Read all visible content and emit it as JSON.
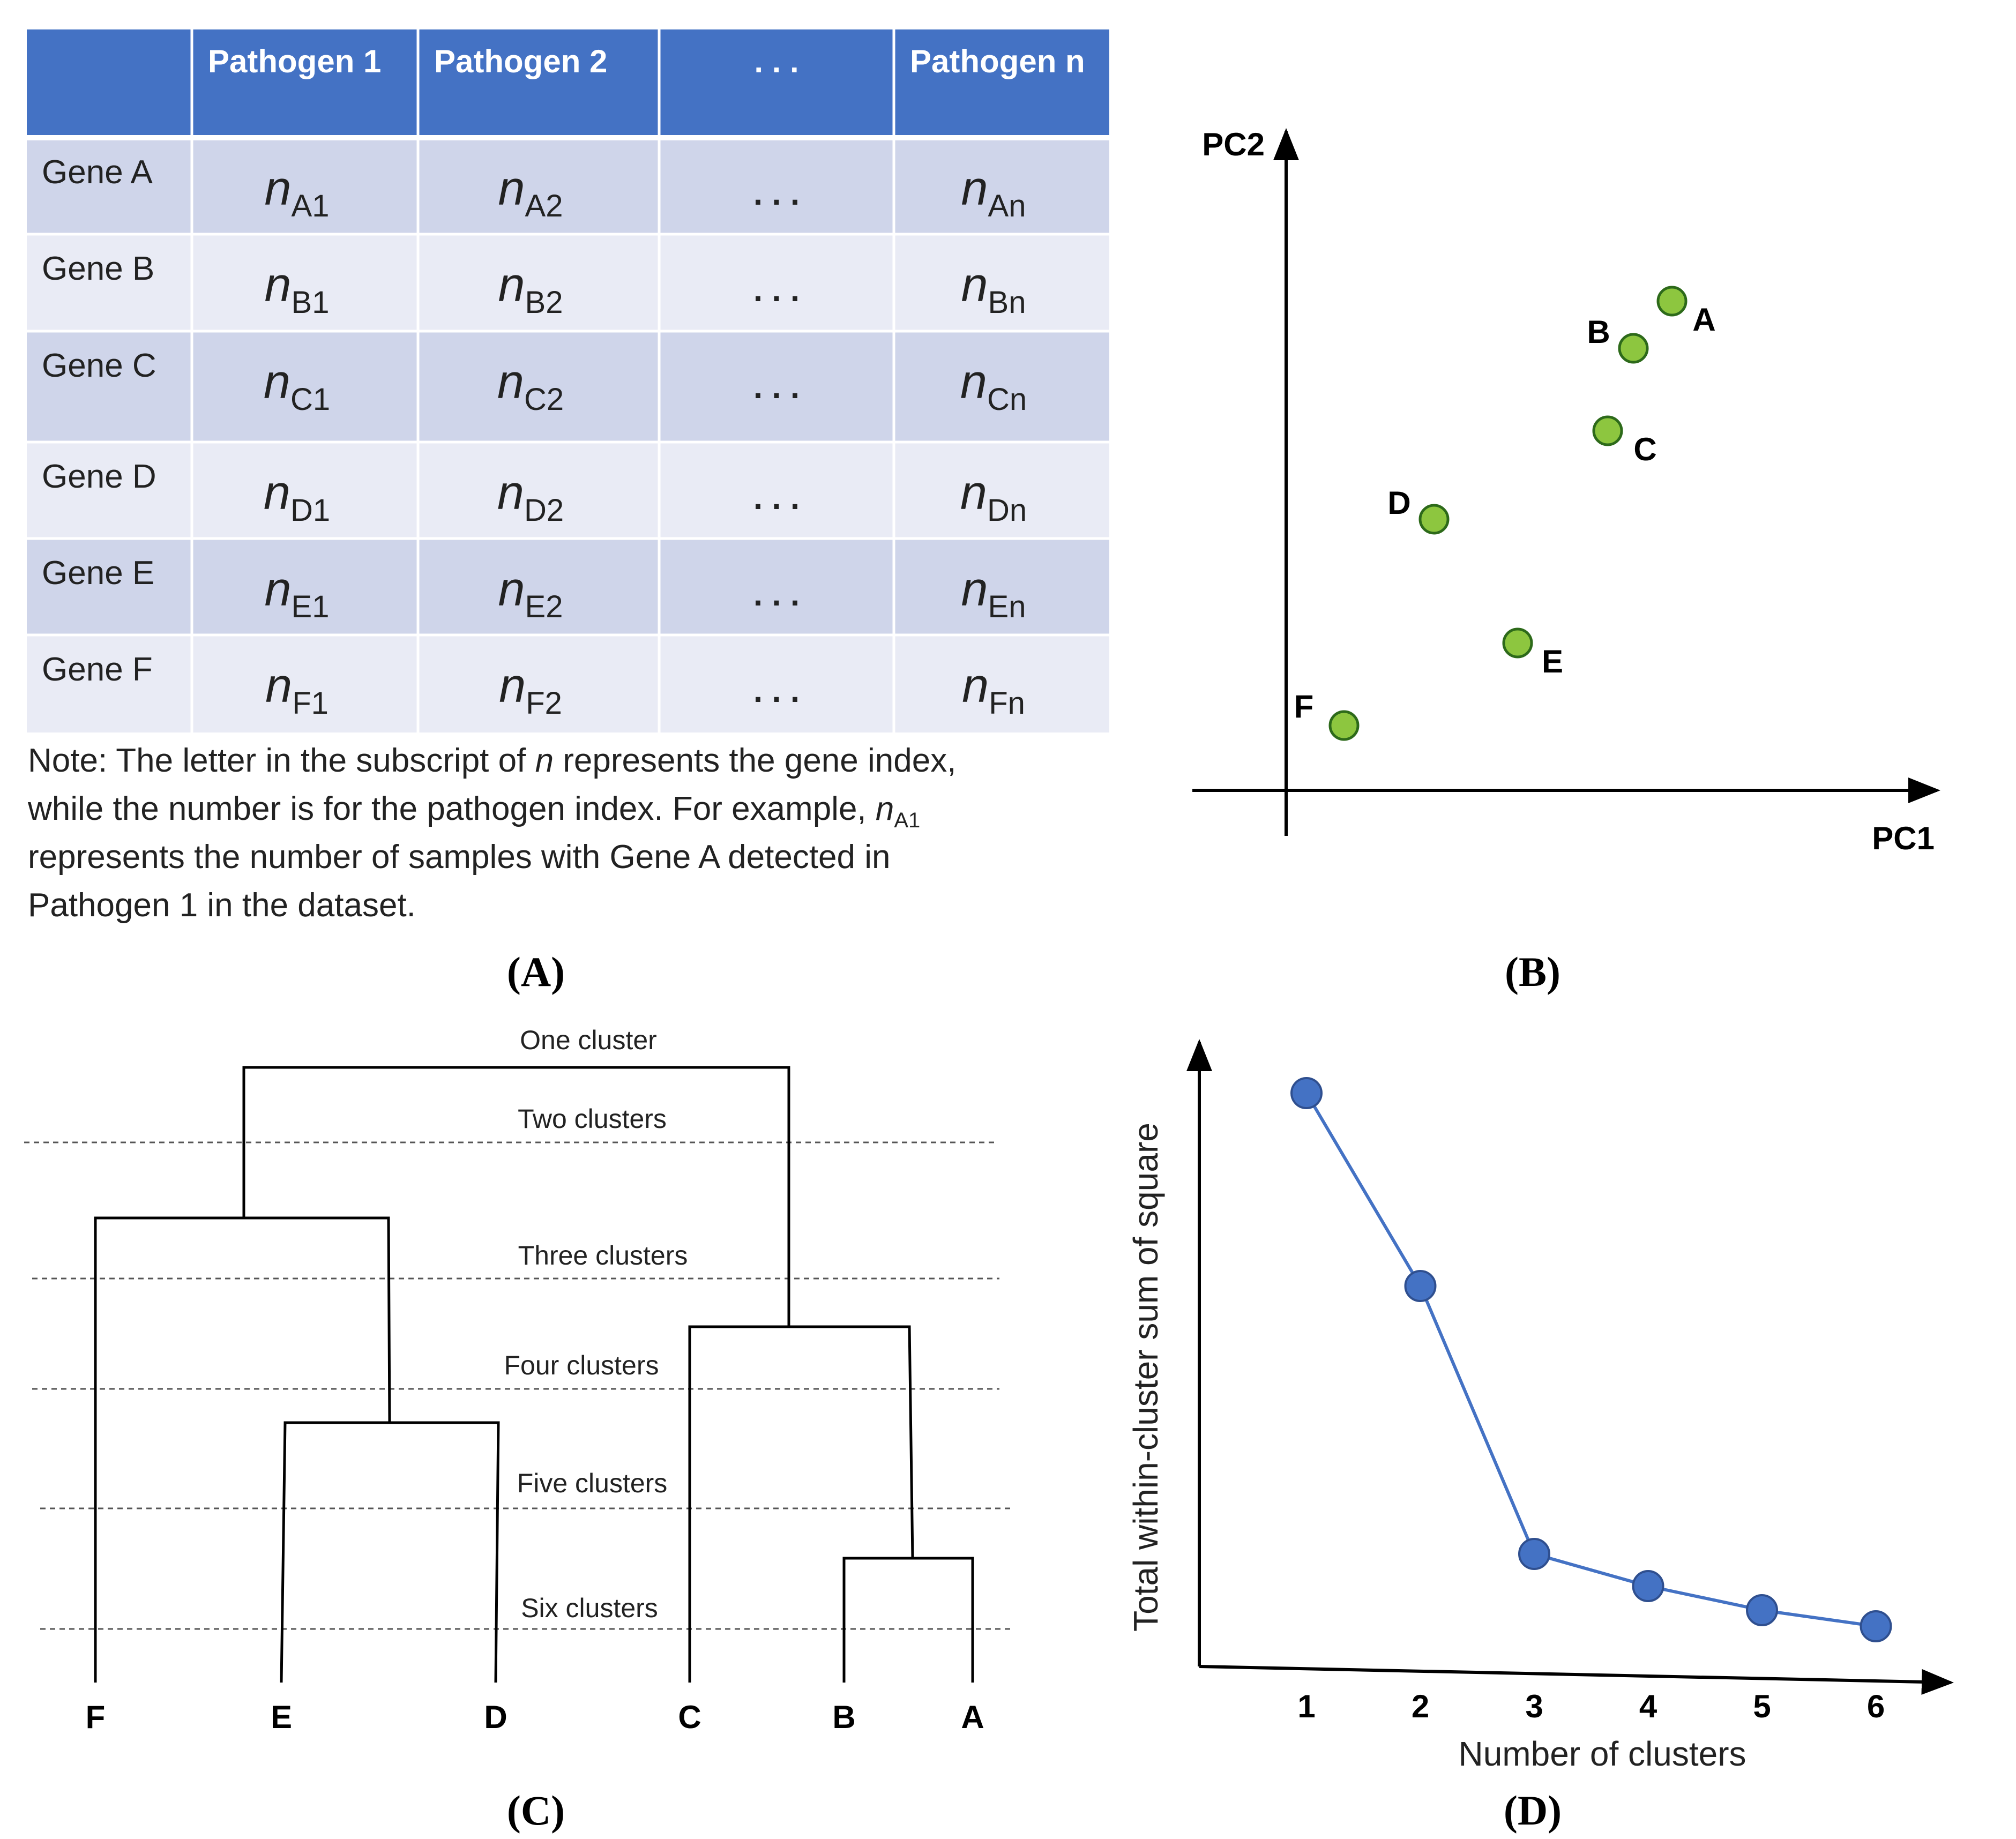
{
  "panel_a": {
    "corner": "",
    "headers": [
      "Pathogen 1",
      "Pathogen 2",
      ". . .",
      "Pathogen n"
    ],
    "rows": [
      {
        "gene": "Gene A",
        "cells": [
          {
            "sub": "A1"
          },
          {
            "sub": "A2"
          },
          {
            "dots": ". . ."
          },
          {
            "sub": "An"
          }
        ]
      },
      {
        "gene": "Gene B",
        "cells": [
          {
            "sub": "B1"
          },
          {
            "sub": "B2"
          },
          {
            "dots": ". . ."
          },
          {
            "sub": "Bn"
          }
        ]
      },
      {
        "gene": "Gene C",
        "cells": [
          {
            "sub": "C1"
          },
          {
            "sub": "C2"
          },
          {
            "dots": ". . ."
          },
          {
            "sub": "Cn"
          }
        ]
      },
      {
        "gene": "Gene D",
        "cells": [
          {
            "sub": "D1"
          },
          {
            "sub": "D2"
          },
          {
            "dots": ". . ."
          },
          {
            "sub": "Dn"
          }
        ]
      },
      {
        "gene": "Gene E",
        "cells": [
          {
            "sub": "E1"
          },
          {
            "sub": "E2"
          },
          {
            "dots": ". . ."
          },
          {
            "sub": "En"
          }
        ]
      },
      {
        "gene": "Gene F",
        "cells": [
          {
            "sub": "F1"
          },
          {
            "sub": "F2"
          },
          {
            "dots": ". . ."
          },
          {
            "sub": "Fn"
          }
        ]
      }
    ],
    "cell_symbol": "n",
    "note": {
      "line1_pre": "Note: The letter in the subscript of ",
      "line1_sym": "n",
      "line1_post": " represents the gene index,",
      "line2_pre": "while the number is for the pathogen index. For example, ",
      "line2_sym": "n",
      "line2_sub": "A1",
      "line3": "represents the number of samples with Gene A detected in",
      "line4": "Pathogen 1 in the dataset."
    },
    "label": "(A)"
  },
  "panel_b": {
    "x_axis_label": "PC1",
    "y_axis_label": "PC2",
    "points": [
      {
        "name": "A",
        "pc1": 0.6,
        "pc2": 0.83
      },
      {
        "name": "B",
        "pc1": 0.54,
        "pc2": 0.75
      },
      {
        "name": "C",
        "pc1": 0.5,
        "pc2": 0.61
      },
      {
        "name": "D",
        "pc1": 0.23,
        "pc2": 0.46
      },
      {
        "name": "E",
        "pc1": 0.36,
        "pc2": 0.25
      },
      {
        "name": "F",
        "pc1": 0.09,
        "pc2": 0.11
      }
    ],
    "point_color": "#8dc63f",
    "label": "(B)"
  },
  "panel_c": {
    "levels": [
      "One cluster",
      "Two clusters",
      "Three clusters",
      "Four clusters",
      "Five clusters",
      "Six clusters"
    ],
    "leaves": [
      "F",
      "E",
      "D",
      "C",
      "B",
      "A"
    ],
    "label": "(C)"
  },
  "panel_d": {
    "chart_data": {
      "type": "line",
      "x": [
        1,
        2,
        3,
        4,
        5,
        6
      ],
      "y": [
        100,
        64,
        14,
        8,
        3.5,
        0.5
      ],
      "categories": [
        "1",
        "2",
        "3",
        "4",
        "5",
        "6"
      ],
      "xlabel": "Number of clusters",
      "ylabel": "Total within-cluster sum of square",
      "ylim": [
        0,
        100
      ],
      "series_color": "#4472c4"
    },
    "label": "(D)"
  },
  "colors": {
    "header_fill": "#4472c4",
    "row_dark": "#cfd5ea",
    "row_light": "#e9ebf5",
    "axis": "#000000",
    "dash": "#555555"
  }
}
